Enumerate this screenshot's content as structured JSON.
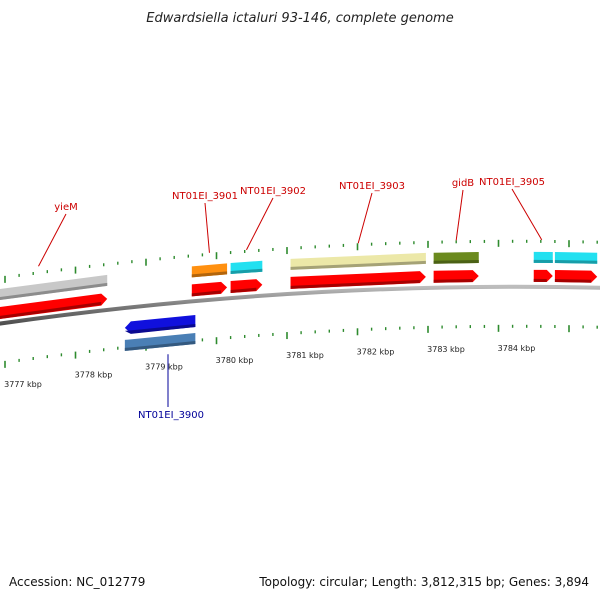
{
  "title": "Edwardsiella ictaluri 93-146, complete genome",
  "footer": {
    "accession": "Accession: NC_012779",
    "topology": "Topology: circular; Length: 3,812,315 bp; Genes: 3,894"
  },
  "colors": {
    "backbone": "#8a8a8a",
    "tick": "#2e8b2e",
    "plus_label": "#cc0000",
    "minus_label": "#000099",
    "cds": "#ff0000",
    "cds_minus": "#1010dd"
  },
  "kbp_labels": [
    {
      "text": "3777 kbp",
      "kbp": 3777
    },
    {
      "text": "3778 kbp",
      "kbp": 3778
    },
    {
      "text": "3779 kbp",
      "kbp": 3779
    },
    {
      "text": "3780 kbp",
      "kbp": 3780
    },
    {
      "text": "3781 kbp",
      "kbp": 3781
    },
    {
      "text": "3782 kbp",
      "kbp": 3782
    },
    {
      "text": "3783 kbp",
      "kbp": 3783
    },
    {
      "text": "3784 kbp",
      "kbp": 3784
    }
  ],
  "genes": [
    {
      "name": "yieM",
      "strand": "+",
      "color": "#c8c8c8",
      "start_kbp": 3776.5,
      "end_kbp": 3778.45,
      "labeled": true
    },
    {
      "name": "NT01EI_3900",
      "strand": "-",
      "color": "#4a7fb5",
      "start_kbp": 3778.7,
      "end_kbp": 3779.7,
      "labeled": true
    },
    {
      "name": "NT01EI_3901",
      "strand": "+",
      "color": "#ff9010",
      "start_kbp": 3779.65,
      "end_kbp": 3780.15,
      "labeled": true
    },
    {
      "name": "NT01EI_3902",
      "strand": "+",
      "color": "#22e0f0",
      "start_kbp": 3780.2,
      "end_kbp": 3780.65,
      "labeled": true
    },
    {
      "name": "NT01EI_3903",
      "strand": "+",
      "color": "#ece8a8",
      "start_kbp": 3781.05,
      "end_kbp": 3782.97,
      "labeled": true
    },
    {
      "name": "gidB",
      "strand": "+",
      "color": "#6b8a1e",
      "start_kbp": 3783.08,
      "end_kbp": 3783.72,
      "labeled": true
    },
    {
      "name": "NT01EI_3905",
      "strand": "+",
      "color": "#22e0f0",
      "start_kbp": 3784.5,
      "end_kbp": 3784.77,
      "labeled": true
    },
    {
      "name": "NT01EI_3906",
      "strand": "+",
      "color": "#22e0f0",
      "start_kbp": 3784.8,
      "end_kbp": 3785.4,
      "labeled": false
    }
  ]
}
